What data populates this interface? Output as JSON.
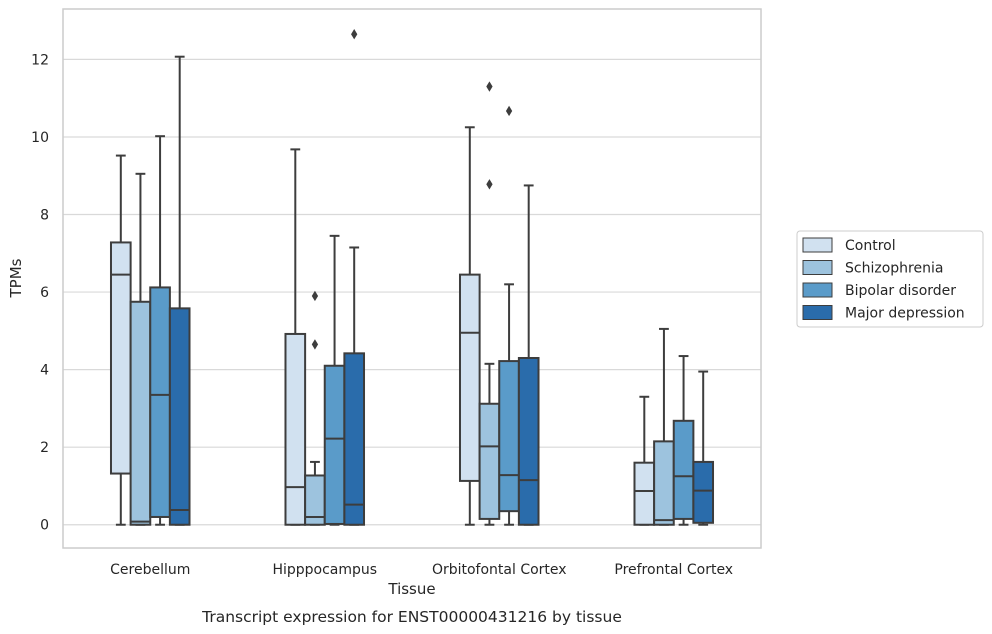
{
  "chart_data": {
    "type": "box",
    "xlabel": "Tissue",
    "ylabel": "TPMs",
    "caption": "Transcript expression for ENST00000431216 by tissue",
    "ylim": [
      -0.6,
      13.3
    ],
    "yticks": [
      0,
      2,
      4,
      6,
      8,
      10,
      12
    ],
    "grid": "horizontal",
    "legend_position": "right",
    "categories": [
      "Cerebellum",
      "Hipppocampus",
      "Orbitofontal Cortex",
      "Prefrontal Cortex"
    ],
    "series": [
      {
        "name": "Control",
        "color": "#d1e1f0",
        "boxes": [
          {
            "min": 0,
            "q1": 1.32,
            "median": 6.45,
            "q3": 7.28,
            "max": 9.52,
            "outliers": []
          },
          {
            "min": 0,
            "q1": 0,
            "median": 0.97,
            "q3": 4.92,
            "max": 9.68,
            "outliers": []
          },
          {
            "min": 0,
            "q1": 1.13,
            "median": 4.95,
            "q3": 6.45,
            "max": 10.25,
            "outliers": []
          },
          {
            "min": 0,
            "q1": 0,
            "median": 0.87,
            "q3": 1.6,
            "max": 3.3,
            "outliers": []
          }
        ]
      },
      {
        "name": "Schizophrenia",
        "color": "#9dc3de",
        "boxes": [
          {
            "min": 0,
            "q1": 0,
            "median": 0.08,
            "q3": 5.75,
            "max": 9.05,
            "outliers": []
          },
          {
            "min": 0,
            "q1": 0,
            "median": 0.2,
            "q3": 1.27,
            "max": 1.62,
            "outliers": [
              4.65,
              5.9
            ]
          },
          {
            "min": 0,
            "q1": 0.15,
            "median": 2.02,
            "q3": 3.12,
            "max": 4.15,
            "outliers": [
              8.78,
              11.3
            ]
          },
          {
            "min": 0,
            "q1": 0,
            "median": 0.12,
            "q3": 2.15,
            "max": 5.05,
            "outliers": []
          }
        ]
      },
      {
        "name": "Bipolar disorder",
        "color": "#5a9bc9",
        "boxes": [
          {
            "min": 0,
            "q1": 0.2,
            "median": 3.35,
            "q3": 6.12,
            "max": 10.02,
            "outliers": []
          },
          {
            "min": 0,
            "q1": 0.02,
            "median": 2.22,
            "q3": 4.1,
            "max": 7.45,
            "outliers": []
          },
          {
            "min": 0,
            "q1": 0.35,
            "median": 1.28,
            "q3": 4.22,
            "max": 6.2,
            "outliers": [
              10.67
            ]
          },
          {
            "min": 0,
            "q1": 0.15,
            "median": 1.25,
            "q3": 2.68,
            "max": 4.35,
            "outliers": []
          }
        ]
      },
      {
        "name": "Major depression",
        "color": "#2a6cab",
        "boxes": [
          {
            "min": 0,
            "q1": 0,
            "median": 0.38,
            "q3": 5.58,
            "max": 12.07,
            "outliers": []
          },
          {
            "min": 0,
            "q1": 0,
            "median": 0.52,
            "q3": 4.42,
            "max": 7.15,
            "outliers": [
              12.65
            ]
          },
          {
            "min": 0,
            "q1": 0,
            "median": 1.15,
            "q3": 4.3,
            "max": 8.75,
            "outliers": []
          },
          {
            "min": 0,
            "q1": 0.05,
            "median": 0.88,
            "q3": 1.62,
            "max": 3.95,
            "outliers": []
          }
        ]
      }
    ]
  }
}
